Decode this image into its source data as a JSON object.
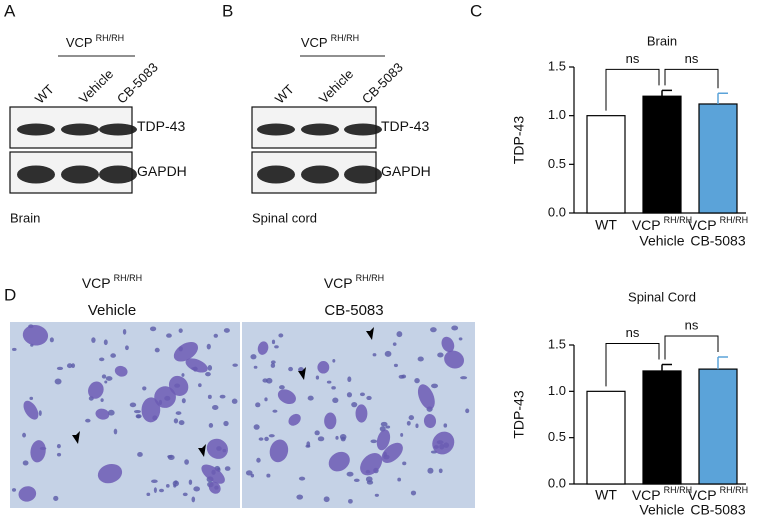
{
  "figure": {
    "panel_labels": [
      "A",
      "B",
      "C",
      "D"
    ],
    "blots": [
      {
        "genotype": "VCP",
        "genotype_sup": "RH/RH",
        "lanes": [
          "WT",
          "Vehicle",
          "CB-5083"
        ],
        "bands": [
          "TDP-43",
          "GAPDH"
        ],
        "tissue": "Brain"
      },
      {
        "genotype": "VCP",
        "genotype_sup": "RH/RH",
        "lanes": [
          "WT",
          "Vehicle",
          "CB-5083"
        ],
        "bands": [
          "TDP-43",
          "GAPDH"
        ],
        "tissue": "Spinal cord"
      }
    ],
    "micrographs": [
      {
        "genotype": "VCP",
        "genotype_sup": "RH/RH",
        "treatment": "Vehicle"
      },
      {
        "genotype": "VCP",
        "genotype_sup": "RH/RH",
        "treatment": "CB-5083"
      }
    ]
  },
  "chart_data": [
    {
      "type": "bar",
      "title": "Brain",
      "ylabel": "TDP-43",
      "categories": [
        "WT",
        "Vehicle",
        "CB-5083"
      ],
      "genotype_labels": [
        null,
        "VCP",
        "VCP"
      ],
      "genotype_superscripts": [
        null,
        "RH/RH",
        "RH/RH"
      ],
      "values": [
        1.0,
        1.2,
        1.12
      ],
      "errors": [
        null,
        0.06,
        0.11
      ],
      "colors": [
        "#ffffff",
        "#000000",
        "#5ba3d9"
      ],
      "ylim": [
        0,
        1.5
      ],
      "yticks": [
        {
          "value": 0,
          "label": "0.0"
        },
        0.5,
        {
          "value": 1,
          "label": "1.0"
        },
        1.5
      ],
      "annotations": [
        "ns",
        "ns"
      ]
    },
    {
      "type": "bar",
      "title": "Spinal Cord",
      "ylabel": "TDP-43",
      "categories": [
        "WT",
        "Vehicle",
        "CB-5083"
      ],
      "genotype_labels": [
        null,
        "VCP",
        "VCP"
      ],
      "genotype_superscripts": [
        null,
        "RH/RH",
        "RH/RH"
      ],
      "values": [
        1.0,
        1.22,
        1.24
      ],
      "errors": [
        null,
        0.07,
        0.13
      ],
      "colors": [
        "#ffffff",
        "#000000",
        "#5ba3d9"
      ],
      "ylim": [
        0,
        1.5
      ],
      "yticks": [
        {
          "value": 0,
          "label": "0.0"
        },
        0.5,
        {
          "value": 1,
          "label": "1.0"
        },
        1.5
      ],
      "annotations": [
        "ns",
        "ns"
      ]
    }
  ]
}
